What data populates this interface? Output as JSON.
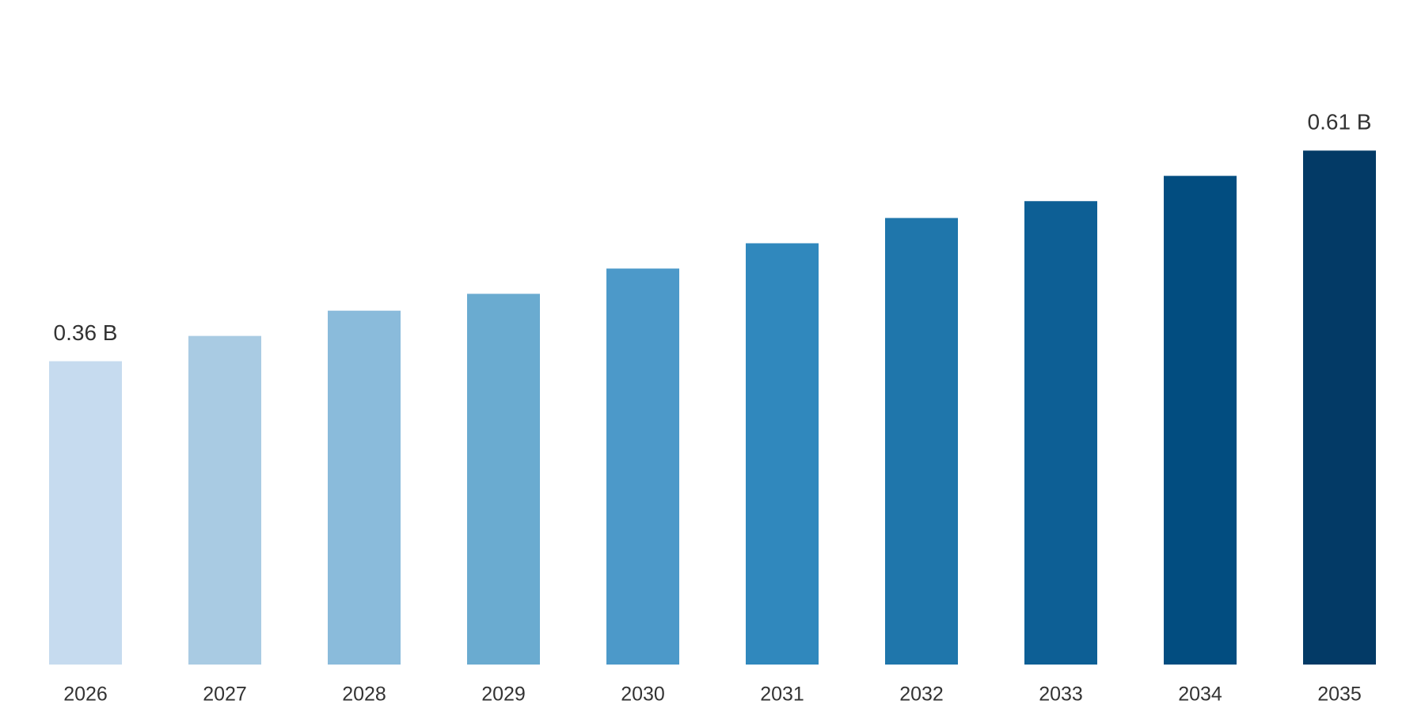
{
  "chart_data": {
    "type": "bar",
    "categories": [
      "2026",
      "2027",
      "2028",
      "2029",
      "2030",
      "2031",
      "2032",
      "2033",
      "2034",
      "2035"
    ],
    "values": [
      0.36,
      0.39,
      0.42,
      0.44,
      0.47,
      0.5,
      0.53,
      0.55,
      0.58,
      0.61
    ],
    "value_labels": [
      "0.36 B",
      null,
      null,
      null,
      null,
      null,
      null,
      null,
      null,
      "0.61 B"
    ],
    "colors": [
      "#c6dbef",
      "#a9cbe3",
      "#8abbdb",
      "#6aabd0",
      "#4c99c9",
      "#3088bd",
      "#1f76ab",
      "#0d5f95",
      "#024d80",
      "#033a66"
    ]
  }
}
